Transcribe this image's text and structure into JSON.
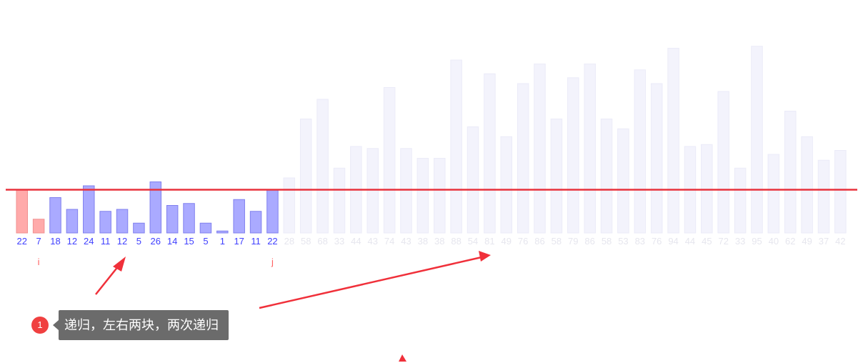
{
  "chart_data": {
    "type": "bar",
    "categories": [
      "22",
      "7",
      "18",
      "12",
      "24",
      "11",
      "12",
      "5",
      "26",
      "14",
      "15",
      "5",
      "1",
      "17",
      "11",
      "22",
      "28",
      "58",
      "68",
      "33",
      "44",
      "43",
      "74",
      "43",
      "38",
      "38",
      "88",
      "54",
      "81",
      "49",
      "76",
      "86",
      "58",
      "79",
      "86",
      "58",
      "53",
      "83",
      "76",
      "94",
      "44",
      "45",
      "72",
      "33",
      "95",
      "40",
      "62",
      "49",
      "37",
      "42"
    ],
    "values": [
      22,
      7,
      18,
      12,
      24,
      11,
      12,
      5,
      26,
      14,
      15,
      5,
      1,
      17,
      11,
      22,
      28,
      58,
      68,
      33,
      44,
      43,
      74,
      43,
      38,
      38,
      88,
      54,
      81,
      49,
      76,
      86,
      58,
      79,
      86,
      58,
      53,
      83,
      76,
      94,
      44,
      45,
      72,
      33,
      95,
      40,
      62,
      49,
      37,
      42
    ],
    "pointer_markers": [
      {
        "label": "i",
        "index": 1
      },
      {
        "label": "j",
        "index": 15
      }
    ],
    "pivot_index": 0,
    "pivot_value": 22,
    "active_range": [
      0,
      15
    ],
    "colors": {
      "pivot_bar": "#ffaaaa",
      "marked_bar": "#ffaaaa",
      "active_bar": "#aaaaff",
      "inactive_bar": "#f3f3fc",
      "pivot_line": "#e8323c",
      "active_label": "#4040ff",
      "inactive_label": "#e6e6ee",
      "marker_label": "#ff6060"
    }
  },
  "annotation": {
    "number": "1",
    "text": "递归，左右两块，两次递归",
    "arrow_color": "#f0303a"
  }
}
